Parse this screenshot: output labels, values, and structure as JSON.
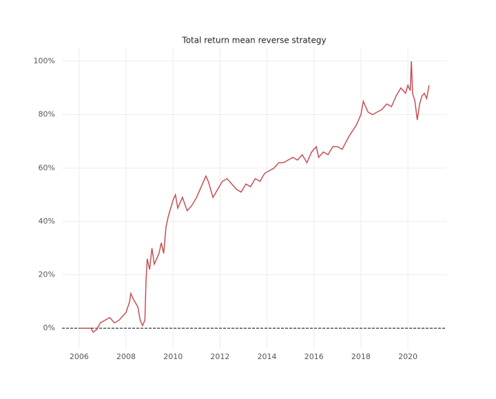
{
  "chart_data": {
    "type": "line",
    "title": "Total return mean reverse strategy",
    "x": [
      2006.0,
      2006.3,
      2006.5,
      2006.6,
      2006.75,
      2006.9,
      2007.1,
      2007.3,
      2007.5,
      2007.7,
      2007.9,
      2008.0,
      2008.15,
      2008.2,
      2008.3,
      2008.5,
      2008.6,
      2008.7,
      2008.8,
      2008.85,
      2008.9,
      2009.0,
      2009.1,
      2009.2,
      2009.4,
      2009.5,
      2009.6,
      2009.7,
      2009.8,
      2009.9,
      2010.0,
      2010.1,
      2010.2,
      2010.4,
      2010.6,
      2010.8,
      2011.0,
      2011.2,
      2011.4,
      2011.5,
      2011.7,
      2011.9,
      2012.1,
      2012.3,
      2012.5,
      2012.7,
      2012.9,
      2013.1,
      2013.3,
      2013.5,
      2013.7,
      2013.9,
      2014.1,
      2014.3,
      2014.5,
      2014.7,
      2014.9,
      2015.1,
      2015.3,
      2015.5,
      2015.7,
      2015.9,
      2016.1,
      2016.2,
      2016.4,
      2016.6,
      2016.8,
      2017.0,
      2017.2,
      2017.5,
      2017.8,
      2018.0,
      2018.1,
      2018.3,
      2018.5,
      2018.7,
      2018.9,
      2019.1,
      2019.3,
      2019.5,
      2019.7,
      2019.9,
      2020.0,
      2020.1,
      2020.15,
      2020.2,
      2020.3,
      2020.4,
      2020.5,
      2020.6,
      2020.7,
      2020.8,
      2020.9
    ],
    "series": [
      {
        "color": "#c44e52",
        "values": [
          0,
          0,
          0,
          -1.5,
          -0.5,
          2,
          3,
          4,
          2,
          3,
          5,
          6,
          10,
          13,
          11,
          8,
          3,
          1,
          3,
          18,
          26,
          22,
          30,
          24,
          28,
          32,
          28,
          38,
          42,
          45,
          48,
          50,
          45,
          49,
          44,
          46,
          49,
          53,
          57,
          55,
          49,
          52,
          55,
          56,
          54,
          52,
          51,
          54,
          53,
          56,
          55,
          58,
          59,
          60,
          62,
          62,
          63,
          64,
          63,
          65,
          62,
          66,
          68,
          64,
          66,
          65,
          68,
          68,
          67,
          72,
          76,
          80,
          85,
          81,
          80,
          81,
          82,
          84,
          83,
          87,
          90,
          88,
          91,
          89,
          100,
          88,
          85,
          78,
          84,
          87,
          88,
          86,
          91
        ]
      }
    ],
    "xlim": [
      2005.27,
      2021.64
    ],
    "xticks": [
      2006,
      2008,
      2010,
      2012,
      2014,
      2016,
      2018,
      2020
    ],
    "ylim": [
      -7.7,
      104.9
    ],
    "yticks": [
      {
        "value": 0,
        "label": "0%"
      },
      {
        "value": 20,
        "label": "20%"
      },
      {
        "value": 40,
        "label": "40%"
      },
      {
        "value": 60,
        "label": "60%"
      },
      {
        "value": 80,
        "label": "80%"
      },
      {
        "value": 100,
        "label": "100%"
      }
    ],
    "hline": 0,
    "grid": true
  }
}
